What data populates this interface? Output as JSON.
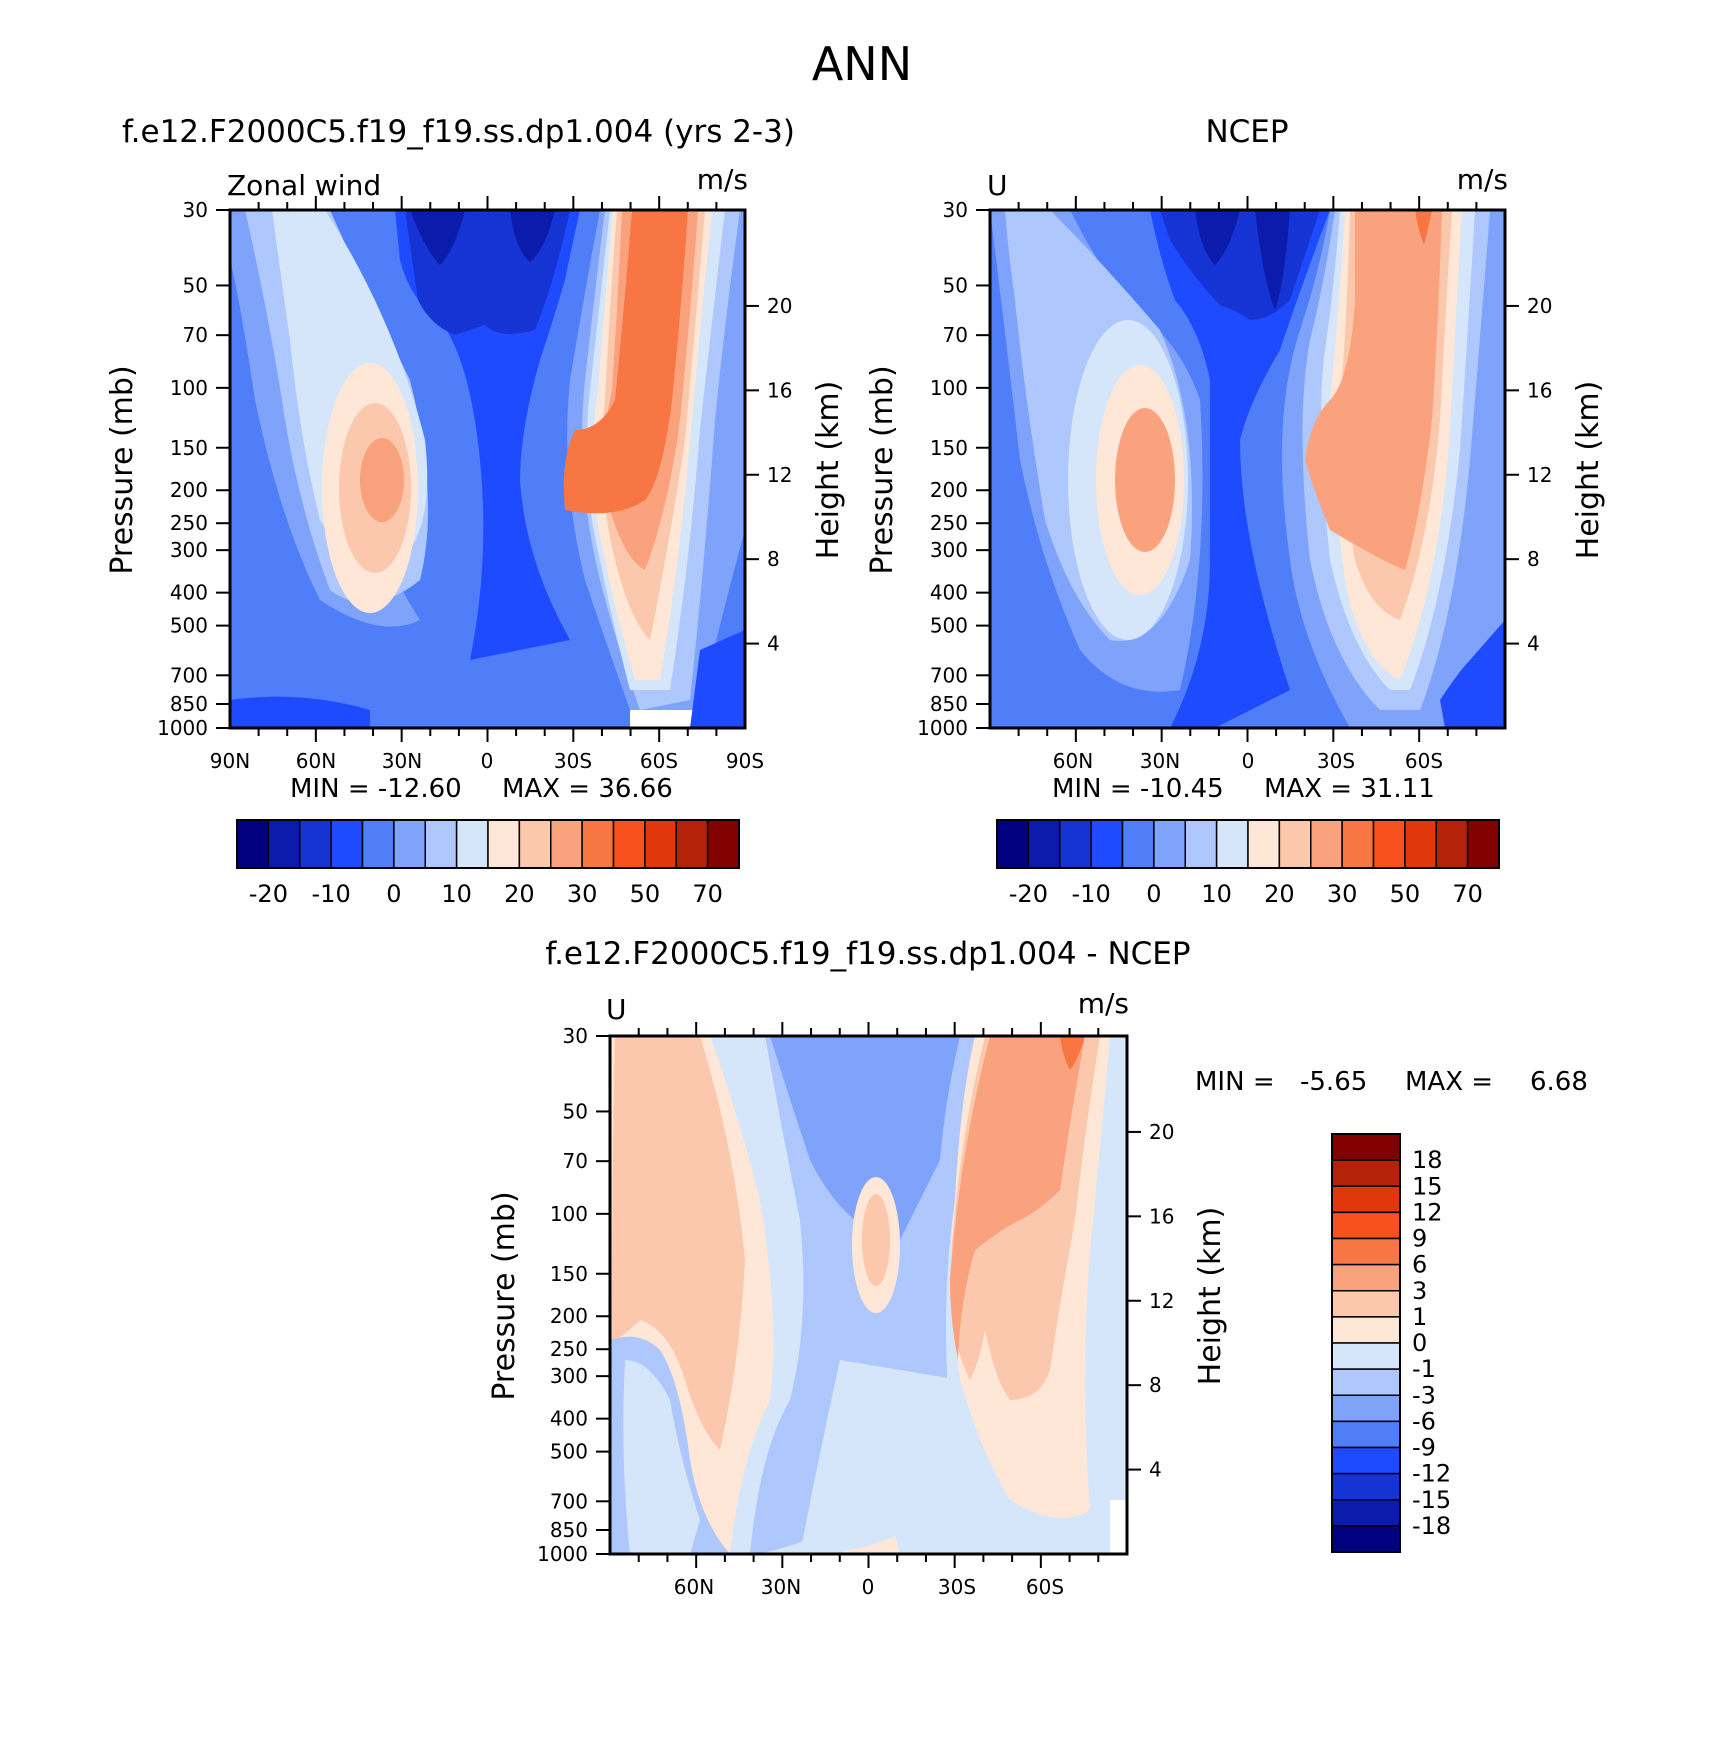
{
  "page_title": "ANN",
  "colorbar_colors": [
    "#000080",
    "#0b1cac",
    "#1633d4",
    "#1f4bff",
    "#4f7ef8",
    "#7fa3fb",
    "#aec8fd",
    "#d5e6fb",
    "#fee7d6",
    "#fcc8ad",
    "#f9a27d",
    "#f77643",
    "#f9501f",
    "#e0380b",
    "#b5220a",
    "#830000"
  ],
  "chart_data": [
    {
      "type": "heatmap",
      "panel": "model",
      "title": "f.e12.F2000C5.f19_f19.ss.dp1.004 (yrs 2-3)",
      "left_label": "Zonal wind",
      "units": "m/s",
      "xlabel": "",
      "ylabel": "Pressure (mb)",
      "ylabel_right": "Height (km)",
      "x_ticks": [
        "90N",
        "60N",
        "30N",
        "0",
        "30S",
        "60S",
        "90S"
      ],
      "y_ticks": [
        30,
        50,
        70,
        100,
        150,
        200,
        250,
        300,
        400,
        500,
        700,
        850,
        1000
      ],
      "height_ticks": [
        20,
        16,
        12,
        8,
        4
      ],
      "ylim": [
        1000,
        30
      ],
      "y_scale": "log",
      "min_text": "MIN = -12.60",
      "max_text": "MAX = 36.66",
      "colorbar_labels": [
        "-20",
        "-10",
        "0",
        "10",
        "20",
        "30",
        "50",
        "70"
      ]
    },
    {
      "type": "heatmap",
      "panel": "obs",
      "title": "NCEP",
      "left_label": "U",
      "units": "m/s",
      "xlabel": "",
      "ylabel": "Pressure (mb)",
      "ylabel_right": "Height (km)",
      "x_ticks": [
        "60N",
        "30N",
        "0",
        "30S",
        "60S"
      ],
      "y_ticks": [
        30,
        50,
        70,
        100,
        150,
        200,
        250,
        300,
        400,
        500,
        700,
        850,
        1000
      ],
      "height_ticks": [
        20,
        16,
        12,
        8,
        4
      ],
      "ylim": [
        1000,
        30
      ],
      "y_scale": "log",
      "min_text": "MIN = -10.45",
      "max_text": "MAX = 31.11",
      "colorbar_labels": [
        "-20",
        "-10",
        "0",
        "10",
        "20",
        "30",
        "50",
        "70"
      ]
    },
    {
      "type": "heatmap",
      "panel": "difference",
      "title": "f.e12.F2000C5.f19_f19.ss.dp1.004 - NCEP",
      "left_label": "U",
      "units": "m/s",
      "xlabel": "",
      "ylabel": "Pressure (mb)",
      "ylabel_right": "Height (km)",
      "x_ticks": [
        "60N",
        "30N",
        "0",
        "30S",
        "60S"
      ],
      "y_ticks": [
        30,
        50,
        70,
        100,
        150,
        200,
        250,
        300,
        400,
        500,
        700,
        850,
        1000
      ],
      "height_ticks": [
        20,
        16,
        12,
        8,
        4
      ],
      "ylim": [
        1000,
        30
      ],
      "y_scale": "log",
      "min_label": "MIN =",
      "min_value": "-5.65",
      "max_label": "MAX =",
      "max_value": "6.68",
      "colorbar_labels": [
        "18",
        "15",
        "12",
        "9",
        "6",
        "3",
        "1",
        "0",
        "-1",
        "-3",
        "-6",
        "-9",
        "-12",
        "-15",
        "-18"
      ]
    }
  ]
}
